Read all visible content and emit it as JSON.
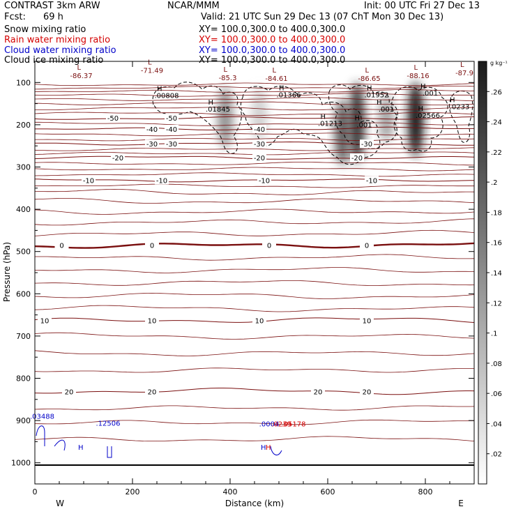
{
  "header": {
    "title": "CONTRAST 3km ARW",
    "institution": "NCAR/MMM",
    "init": "Init: 00 UTC Fri 27 Dec 13",
    "fcst_label": "Fcst:",
    "fcst_value": "69 h",
    "valid": "Valid: 21 UTC Sun 29 Dec 13 (07 ChT Mon 30 Dec 13)"
  },
  "fields": [
    {
      "name": "Snow mixing ratio",
      "xy": "XY= 100.0,300.0 to 400.0,300.0",
      "color": "#000000"
    },
    {
      "name": "Rain water mixing ratio",
      "xy": "XY= 100.0,300.0 to 400.0,300.0",
      "color": "#d40000"
    },
    {
      "name": "Cloud water mixing ratio",
      "xy": "XY= 100.0,300.0 to 400.0,300.0",
      "color": "#0000c8"
    },
    {
      "name": "Cloud ice mixing ratio",
      "xy": "XY= 100.0,300.0 to 400.0,300.0",
      "color": "#000000"
    }
  ],
  "colors": {
    "temperature": "#7a0f0f",
    "cloud_water": "#0000c8",
    "rain": "#d40000"
  },
  "chart_data": {
    "type": "cross-section",
    "xlabel": "Distance (km)",
    "ylabel": "Pressure (hPa)",
    "xlim": [
      0,
      900
    ],
    "ylim": [
      1050,
      50
    ],
    "x_ticks": [
      0,
      200,
      400,
      600,
      800
    ],
    "y_ticks": [
      100,
      200,
      300,
      400,
      500,
      600,
      700,
      800,
      900,
      1000
    ],
    "west_label": "W",
    "east_label": "E",
    "colorbar": {
      "unit": "g kg⁻¹",
      "ticks": [
        ".02",
        ".04",
        ".06",
        ".08",
        ".1",
        ".12",
        ".14",
        ".16",
        ".18",
        ".2",
        ".22",
        ".24",
        ".26"
      ],
      "values": [
        0.02,
        0.04,
        0.06,
        0.08,
        0.1,
        0.12,
        0.14,
        0.16,
        0.18,
        0.2,
        0.22,
        0.24,
        0.26
      ],
      "max": 0.28
    },
    "temperature_contours": [
      {
        "label": "-50",
        "p": 184,
        "labels_at": [
          160,
          280
        ]
      },
      {
        "label": "-40",
        "p": 210,
        "labels_at": [
          240,
          280,
          460
        ]
      },
      {
        "label": "-30",
        "p": 245,
        "labels_at": [
          240,
          280,
          460,
          680
        ]
      },
      {
        "label": "-20",
        "p": 278,
        "labels_at": [
          170,
          460,
          660
        ]
      },
      {
        "label": "-10",
        "p": 331,
        "labels_at": [
          110,
          260,
          470,
          690
        ]
      },
      {
        "label": "0",
        "p": 485,
        "labels_at": [
          55,
          240,
          480,
          680
        ],
        "bold": true
      },
      {
        "label": "10",
        "p": 663,
        "labels_at": [
          20,
          240,
          460,
          680
        ]
      },
      {
        "label": "20",
        "p": 831,
        "labels_at": [
          70,
          240,
          580,
          680
        ]
      }
    ],
    "contour_min_labels": [
      {
        "text": "-86.37",
        "x": 95,
        "p": 86
      },
      {
        "text": "-71.49",
        "x": 240,
        "p": 74
      },
      {
        "text": "-85.3",
        "x": 395,
        "p": 91
      },
      {
        "text": "-84.61",
        "x": 495,
        "p": 93
      },
      {
        "text": "-86.65",
        "x": 685,
        "p": 93
      },
      {
        "text": "-88.16",
        "x": 785,
        "p": 86
      },
      {
        "text": "-87.9",
        "x": 880,
        "p": 80
      }
    ],
    "max_labels": [
      {
        "text": ".00808",
        "x": 270,
        "p": 137
      },
      {
        "text": ".01845",
        "x": 375,
        "p": 169
      },
      {
        "text": ".01366",
        "x": 520,
        "p": 135
      },
      {
        "text": ".01952",
        "x": 700,
        "p": 135
      },
      {
        "text": ".001",
        "x": 810,
        "p": 131
      },
      {
        "text": ".001",
        "x": 720,
        "p": 169
      },
      {
        "text": ".0233",
        "x": 870,
        "p": 163
      },
      {
        "text": ".02566",
        "x": 805,
        "p": 184
      },
      {
        "text": ".01213",
        "x": 605,
        "p": 203
      },
      {
        "text": ".001",
        "x": 675,
        "p": 206
      }
    ],
    "surface_labels": [
      {
        "text": ".03488",
        "x": 15,
        "p": 896,
        "color": "#0000c8"
      },
      {
        "text": ".12506",
        "x": 150,
        "p": 912,
        "color": "#0000c8"
      },
      {
        "text": ".0004",
        "x": 480,
        "p": 914,
        "color": "#0000c8"
      },
      {
        "text": ".0239",
        "x": 505,
        "p": 914,
        "color": "#d40000"
      },
      {
        "text": ".05178",
        "x": 530,
        "p": 914,
        "color": "#d40000"
      }
    ],
    "precip_columns": [
      {
        "x": 390,
        "p_top": 110,
        "p_bot": 255,
        "peak": 0.12
      },
      {
        "x": 460,
        "p_top": 110,
        "p_bot": 240,
        "peak": 0.05
      },
      {
        "x": 630,
        "p_top": 140,
        "p_bot": 295,
        "peak": 0.18
      },
      {
        "x": 660,
        "p_top": 100,
        "p_bot": 290,
        "peak": 0.22
      },
      {
        "x": 720,
        "p_top": 130,
        "p_bot": 240,
        "peak": 0.1
      },
      {
        "x": 780,
        "p_top": 100,
        "p_bot": 275,
        "peak": 0.26
      }
    ]
  }
}
